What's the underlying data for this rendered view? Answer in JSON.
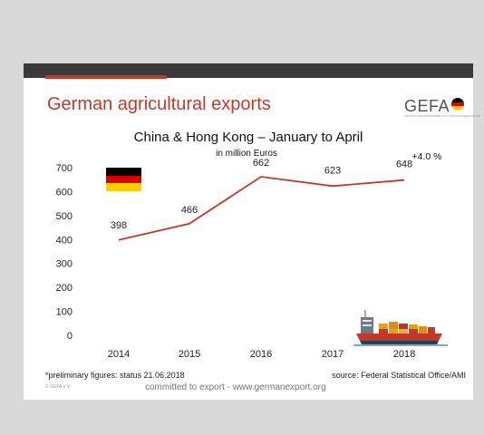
{
  "slide": {
    "title": "German agricultural exports",
    "logo_text": "GEFA",
    "logo_subtext": "German Export Association for Food and Agriproducts",
    "footnote_left": "*preliminary figures: status 21.06.2018",
    "footnote_right": "source: Federal Statistical Office/AMI",
    "copyright": "© GEFA e.V.",
    "tagline": "committed to export - www.germanexport.org"
  },
  "chart_data": {
    "type": "line",
    "title": "China & Hong Kong – January to April",
    "subtitle": "in million Euros",
    "categories": [
      "2014",
      "2015",
      "2016",
      "2017",
      "2018"
    ],
    "series": [
      {
        "values": [
          398,
          466,
          662,
          623,
          648
        ],
        "color": "#c0392b"
      }
    ],
    "data_labels": [
      "398",
      "466",
      "662",
      "623",
      "648"
    ],
    "annotation": "+4.0 %",
    "ylim": [
      0,
      700
    ],
    "yticks": [
      0,
      100,
      200,
      300,
      400,
      500,
      600,
      700
    ],
    "grid": false,
    "colors": {
      "line": "#c0392b",
      "flag_black": "#000000",
      "flag_red": "#dd0000",
      "flag_gold": "#ffce00"
    }
  }
}
